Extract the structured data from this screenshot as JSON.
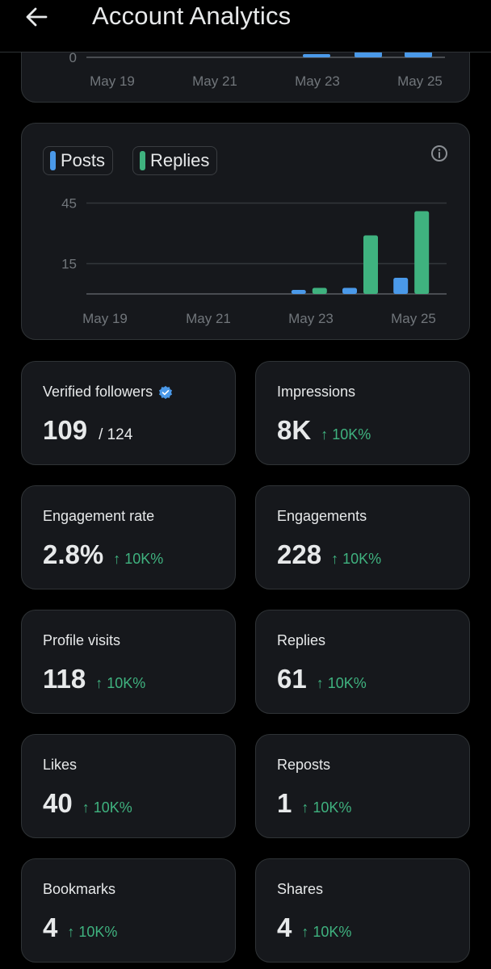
{
  "header": {
    "title": "Account Analytics"
  },
  "top_chart": {
    "ticks": [
      "0"
    ],
    "dates": [
      "May 19",
      "May 21",
      "May 23",
      "May 25"
    ]
  },
  "legend": {
    "posts_label": "Posts",
    "replies_label": "Replies",
    "posts_color": "#4a99e9",
    "replies_color": "#3fb27f"
  },
  "chart_data": {
    "type": "bar",
    "categories": [
      "May 19",
      "May 20",
      "May 21",
      "May 22",
      "May 23",
      "May 24",
      "May 25"
    ],
    "x_tick_labels": [
      "May 19",
      "May 21",
      "May 23",
      "May 25"
    ],
    "y_tick_labels": [
      "15",
      "45"
    ],
    "ylim": [
      0,
      51
    ],
    "series": [
      {
        "name": "Posts",
        "color": "#4a99e9",
        "values": [
          0,
          0,
          0,
          0,
          2,
          3,
          8
        ]
      },
      {
        "name": "Replies",
        "color": "#3fb27f",
        "values": [
          0,
          0,
          0,
          0,
          3,
          29,
          41
        ]
      }
    ],
    "legend": "top-left",
    "grid": true
  },
  "stats": [
    {
      "label": "Verified followers",
      "value": "109",
      "sub": "/ 124",
      "change": "",
      "verified": true
    },
    {
      "label": "Impressions",
      "value": "8K",
      "sub": "",
      "change": "↑ 10K%"
    },
    {
      "label": "Engagement rate",
      "value": "2.8%",
      "sub": "",
      "change": "↑ 10K%"
    },
    {
      "label": "Engagements",
      "value": "228",
      "sub": "",
      "change": "↑ 10K%"
    },
    {
      "label": "Profile visits",
      "value": "118",
      "sub": "",
      "change": "↑ 10K%"
    },
    {
      "label": "Replies",
      "value": "61",
      "sub": "",
      "change": "↑ 10K%"
    },
    {
      "label": "Likes",
      "value": "40",
      "sub": "",
      "change": "↑ 10K%"
    },
    {
      "label": "Reposts",
      "value": "1",
      "sub": "",
      "change": "↑ 10K%"
    },
    {
      "label": "Bookmarks",
      "value": "4",
      "sub": "",
      "change": "↑ 10K%"
    },
    {
      "label": "Shares",
      "value": "4",
      "sub": "",
      "change": "↑ 10K%"
    }
  ],
  "icons": {
    "back": "arrow-left-icon",
    "info": "info-icon",
    "verified": "verified-badge-icon"
  }
}
